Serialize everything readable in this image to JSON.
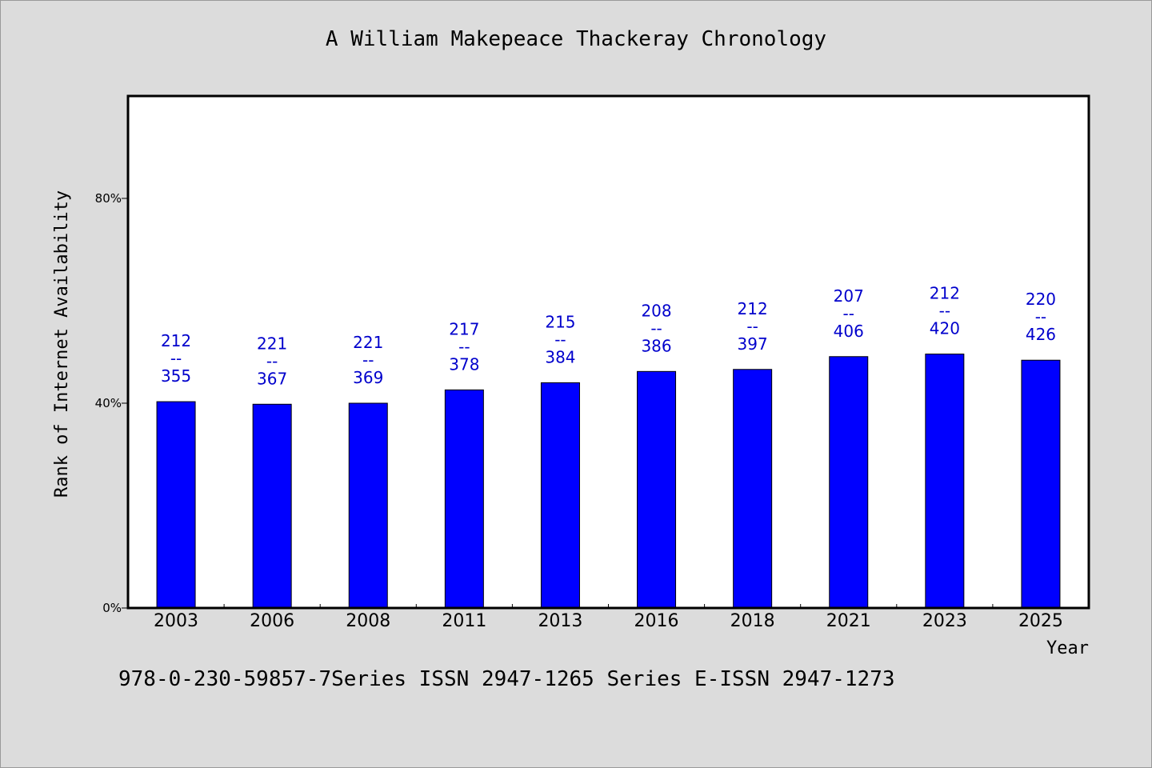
{
  "chart_data": {
    "type": "bar",
    "title": "A William Makepeace Thackeray Chronology",
    "xlabel": "Year",
    "ylabel": "Rank of Internet Availability",
    "categories": [
      "2003",
      "2006",
      "2008",
      "2011",
      "2013",
      "2016",
      "2018",
      "2021",
      "2023",
      "2025"
    ],
    "values": [
      40.3,
      39.8,
      40.0,
      42.6,
      44.0,
      46.2,
      46.6,
      49.1,
      49.6,
      48.4
    ],
    "data_labels": [
      [
        "212",
        "--",
        "355"
      ],
      [
        "221",
        "--",
        "367"
      ],
      [
        "221",
        "--",
        "369"
      ],
      [
        "217",
        "--",
        "378"
      ],
      [
        "215",
        "--",
        "384"
      ],
      [
        "208",
        "--",
        "386"
      ],
      [
        "212",
        "--",
        "397"
      ],
      [
        "207",
        "--",
        "406"
      ],
      [
        "212",
        "--",
        "420"
      ],
      [
        "220",
        "--",
        "426"
      ]
    ],
    "ylim": [
      0,
      100
    ],
    "yticks": [
      0,
      40,
      80
    ],
    "ytick_labels": [
      "0%",
      "40%",
      "80%"
    ],
    "bar_color": "#0000ff",
    "label_color": "#0000cc",
    "grid": false
  },
  "footnote": "978-0-230-59857-7Series ISSN 2947-1265 Series E-ISSN 2947-1273"
}
